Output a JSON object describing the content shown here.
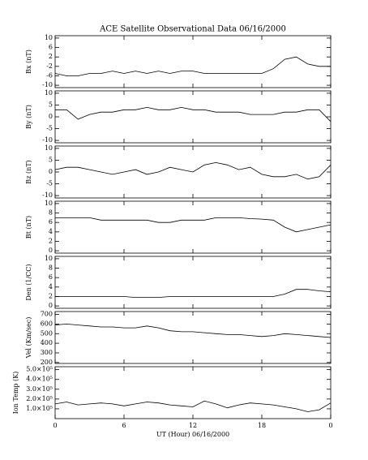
{
  "chart_data": [
    {
      "type": "line",
      "title": "ACE Satellite Observational Data   06/16/2000",
      "ylabel": "Bx (nT)",
      "x": [
        0,
        1,
        2,
        3,
        4,
        5,
        6,
        7,
        8,
        9,
        10,
        11,
        12,
        13,
        14,
        15,
        16,
        17,
        18,
        19,
        20,
        21,
        22,
        23,
        24
      ],
      "values": [
        -5,
        -6,
        -6,
        -5,
        -5,
        -4,
        -5,
        -4,
        -5,
        -4,
        -5,
        -4,
        -4,
        -5,
        -5,
        -5,
        -5,
        -5,
        -5,
        -3,
        1,
        2,
        -1,
        -2,
        -2
      ],
      "ylim": [
        -11,
        11
      ],
      "yticks": [
        10,
        6,
        2,
        -2,
        -6,
        -10
      ]
    },
    {
      "type": "line",
      "ylabel": "By (nT)",
      "x": [
        0,
        1,
        2,
        3,
        4,
        5,
        6,
        7,
        8,
        9,
        10,
        11,
        12,
        13,
        14,
        15,
        16,
        17,
        18,
        19,
        20,
        21,
        22,
        23,
        24
      ],
      "values": [
        3,
        3,
        -1,
        1,
        2,
        2,
        3,
        3,
        4,
        3,
        3,
        4,
        3,
        3,
        2,
        2,
        2,
        1,
        1,
        1,
        2,
        2,
        3,
        3,
        -2
      ],
      "ylim": [
        -11,
        11
      ],
      "yticks": [
        10,
        5,
        0,
        -5,
        -10
      ]
    },
    {
      "type": "line",
      "ylabel": "Bz (nT)",
      "x": [
        0,
        1,
        2,
        3,
        4,
        5,
        6,
        7,
        8,
        9,
        10,
        11,
        12,
        13,
        14,
        15,
        16,
        17,
        18,
        19,
        20,
        21,
        22,
        23,
        24
      ],
      "values": [
        1,
        2,
        2,
        1,
        0,
        -1,
        0,
        1,
        -1,
        0,
        2,
        1,
        0,
        3,
        4,
        3,
        1,
        2,
        -1,
        -2,
        -2,
        -1,
        -3,
        -2,
        3
      ],
      "ylim": [
        -11,
        11
      ],
      "yticks": [
        10,
        5,
        0,
        -5,
        -10
      ]
    },
    {
      "type": "line",
      "ylabel": "Bt (nT)",
      "x": [
        0,
        1,
        2,
        3,
        4,
        5,
        6,
        7,
        8,
        9,
        10,
        11,
        12,
        13,
        14,
        15,
        16,
        17,
        18,
        19,
        20,
        21,
        22,
        23,
        24
      ],
      "values": [
        7,
        7,
        7,
        7,
        6.5,
        6.5,
        6.5,
        6.5,
        6.5,
        6,
        6,
        6.5,
        6.5,
        6.5,
        7,
        7,
        7,
        6.8,
        6.7,
        6.5,
        5,
        4,
        4.5,
        5,
        5.5
      ],
      "ylim": [
        -0.5,
        10.5
      ],
      "yticks": [
        10,
        8,
        6,
        4,
        2,
        0
      ]
    },
    {
      "type": "line",
      "ylabel": "Den (1/CC)",
      "x": [
        0,
        1,
        2,
        3,
        4,
        5,
        6,
        7,
        8,
        9,
        10,
        11,
        12,
        13,
        14,
        15,
        16,
        17,
        18,
        19,
        20,
        21,
        22,
        23,
        24
      ],
      "values": [
        2,
        2,
        2,
        2,
        2,
        2,
        2,
        1.8,
        1.8,
        1.8,
        2,
        2,
        2,
        2,
        2,
        2,
        2,
        2,
        2,
        2,
        2.5,
        3.5,
        3.5,
        3.2,
        3
      ],
      "ylim": [
        -0.5,
        10.5
      ],
      "yticks": [
        10,
        8,
        6,
        4,
        2,
        0
      ]
    },
    {
      "type": "line",
      "ylabel": "Vel (Km/sec)",
      "x": [
        0,
        1,
        2,
        3,
        4,
        5,
        6,
        7,
        8,
        9,
        10,
        11,
        12,
        13,
        14,
        15,
        16,
        17,
        18,
        19,
        20,
        21,
        22,
        23,
        24
      ],
      "values": [
        590,
        600,
        590,
        580,
        570,
        570,
        560,
        560,
        580,
        560,
        530,
        520,
        520,
        510,
        500,
        490,
        490,
        480,
        470,
        480,
        500,
        490,
        480,
        470,
        460
      ],
      "ylim": [
        190,
        730
      ],
      "yticks": [
        700,
        600,
        500,
        400,
        300,
        200
      ]
    },
    {
      "type": "line",
      "ylabel": "Ion Temp (K)",
      "xlabel": "UT (Hour)   06/16/2000",
      "x": [
        0,
        1,
        2,
        3,
        4,
        5,
        6,
        7,
        8,
        9,
        10,
        11,
        12,
        13,
        14,
        15,
        16,
        17,
        18,
        19,
        20,
        21,
        22,
        23,
        24
      ],
      "values": [
        150000,
        170000,
        140000,
        150000,
        160000,
        150000,
        130000,
        150000,
        170000,
        160000,
        140000,
        130000,
        120000,
        180000,
        150000,
        110000,
        140000,
        160000,
        150000,
        140000,
        120000,
        100000,
        70000,
        90000,
        160000
      ],
      "ylim": [
        0,
        530000
      ],
      "yticks": [
        {
          "value": 500000,
          "label": "5.0×10⁵"
        },
        {
          "value": 400000,
          "label": "4.0×10⁵"
        },
        {
          "value": 300000,
          "label": "3.0×10⁵"
        },
        {
          "value": 200000,
          "label": "2.0×10⁵"
        },
        {
          "value": 100000,
          "label": "1.0×10⁵"
        }
      ],
      "xlim": [
        0,
        24
      ],
      "xticks": [
        0,
        6,
        12,
        18,
        {
          "value": 24,
          "label": "0"
        }
      ]
    }
  ]
}
